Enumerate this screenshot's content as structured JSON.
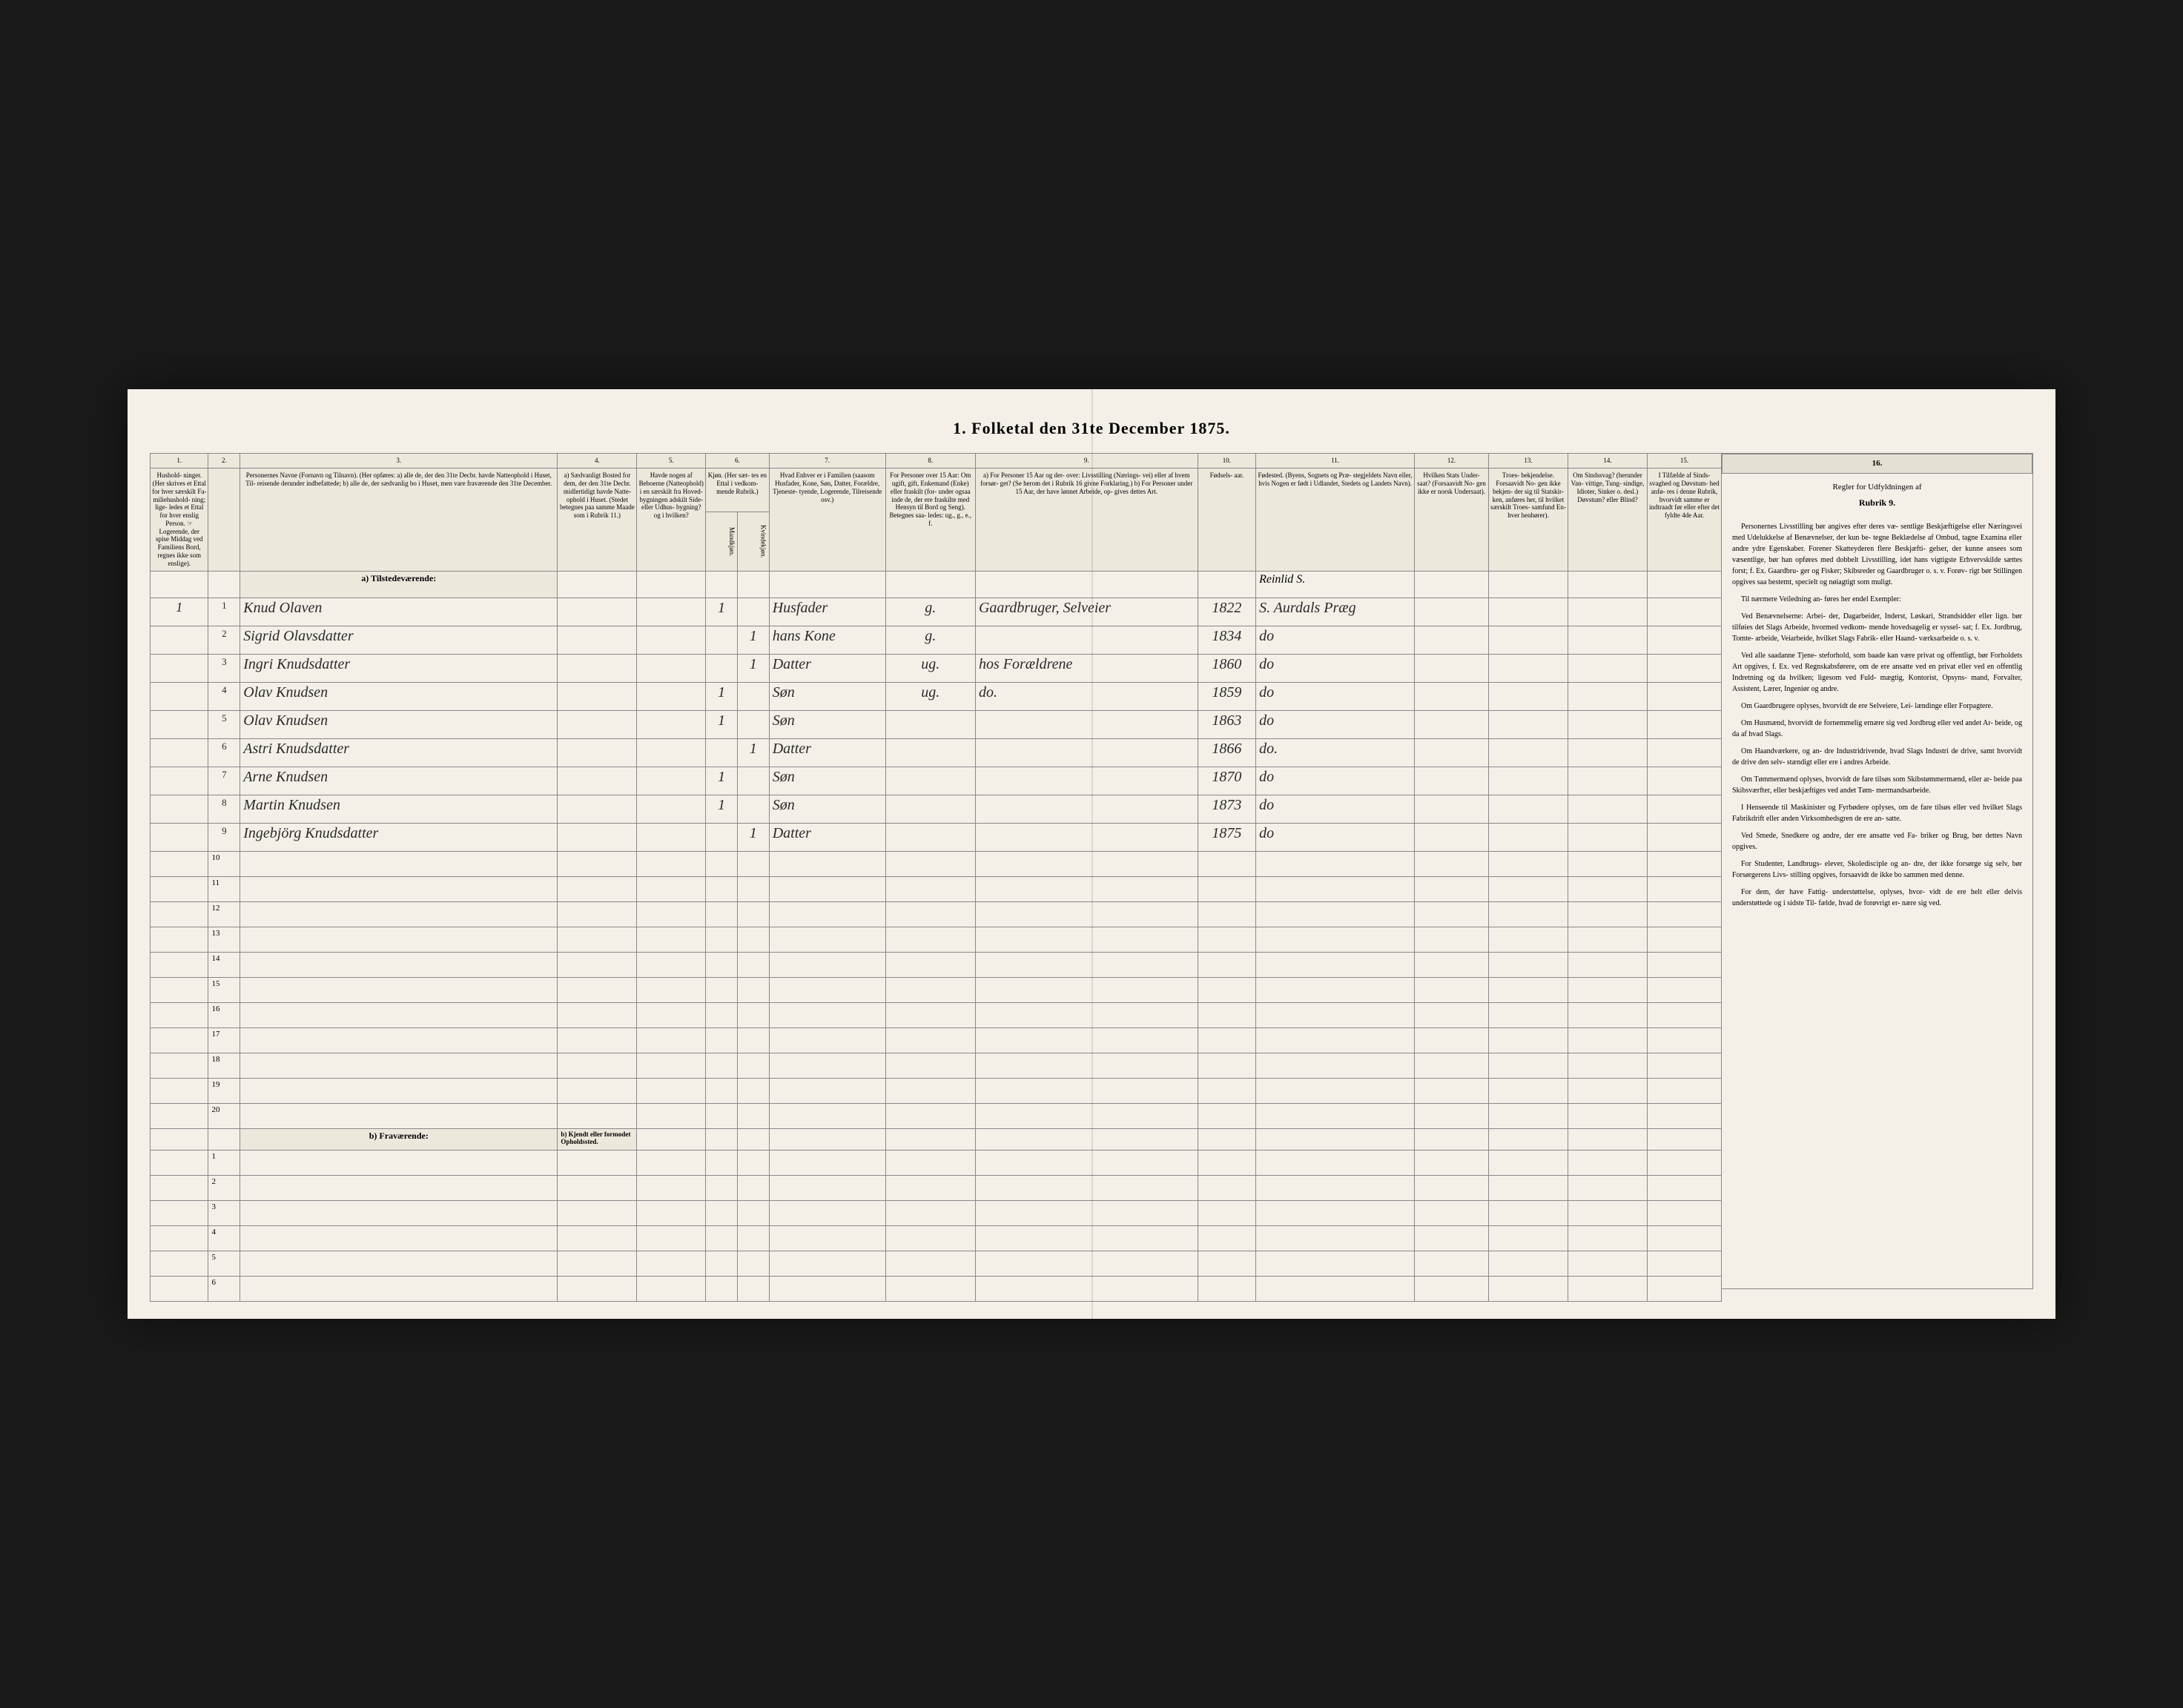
{
  "title": "1. Folketal den 31te December 1875.",
  "colNumbers": [
    "1.",
    "2.",
    "3.",
    "4.",
    "5.",
    "6.",
    "7.",
    "8.",
    "9.",
    "10.",
    "11.",
    "12.",
    "13.",
    "14.",
    "15.",
    "16."
  ],
  "headers": {
    "h1": "Hushold-\nninger.\n(Her skrives et Ettal for hver særskilt Fa-\nmiliehushold-\nning; lige-\nledes et Ettal for hver enslig Person.\n☞ Logerende, der spise Middag ved Familiens Bord, regnes ikke som enslige).",
    "h2": "",
    "h3": "Personernes Navne (Fornavn og Tilnavn).\n(Her opføres:\na) alle de, der den 31te Decbr. havde Natteophold i Huset, Til-\nreisende derunder indbefattede;\nb) alle de, der sædvanlig bo i Huset, men vare fraværende den 31te December.",
    "h4": "a) Sædvanligt Bosted for dem, der den 31te Decbr. midlertidigt havde Natte-\nophold i Huset. (Stedet betegnes paa samme Maade som i Rubrik 11.)",
    "h5": "Havde nogen af Beboerne (Natteophold) i en særskilt fra Hoved-\nbygningen adskilt Side-\neller Udhus-\nbygning? og i hvilken?",
    "h6": "Kjøn.\n(Her sæt-\ntes en Ettal i vedkom-\nmende Rubrik.)",
    "h6a": "Mandkjøn.",
    "h6b": "Kvindekjøn.",
    "h7": "Hvad Enhver er i Familien\n(saasom Husfader, Kone, Søn, Datter, Forældre, Tjeneste-\ntyende, Logerende, Tilreisende osv.)",
    "h8": "For Personer over 15 Aar: Om ugift, gift, Enkemand (Enke) eller fraskilt (for-\nunder ogsaa inde de, der ere fraskilte med Hensyn til Bord og Seng).\nBetegnes saa-\nledes:\nug., g., e., f.",
    "h9": "a) For Personer 15 Aar og der-\nover: Livsstilling (Nærings-\nvei) eller af hvem forsør-\nget? (Se herom det i Rubrik 16 givne Forklaring.)\nb) For Personer under 15 Aar, der have lønnet Arbeide, op-\ngives dettes Art.",
    "h10": "Fødsels-\naar.",
    "h11": "Fødested.\n(Byens, Sognets og Præ-\nstegjeldets Navn eller, hvis Nogen er født i Udlandet, Stedets og Landets Navn).",
    "h12": "Hvilken Stats Under-\nsaat?\n(Forsaavidt No-\ngen ikke er norsk Undersaat).",
    "h13": "Troes-\nbekjendelse.\nForsaavidt No-\ngen ikke bekjen-\nder sig til Statskir-\nken, anføres her, til hvilket særskilt Troes-\nsamfund En-\nhver henhører).",
    "h14": "Om Sindssvag?\n(herunder Van-\nvittige, Tung-\nsindige, Idioter, Sinker o. desl.) Døvstum? eller Blind?",
    "h15": "I Tilfælde af Sinds-\nsvaghed og Døvstum-\nhed anfø-\nres i denne Rubrik, hvorvidt samme er indtraadt før eller efter det fyldte 4de Aar.",
    "h16": "Regler for Udfyldningen\naf\nRubrik 9."
  },
  "sectionA": "a) Tilstedeværende:",
  "sectionB": "b) Fraværende:",
  "sectionBcol4": "b) Kjendt eller formodet Opholdssted.",
  "topRightNote": "Reinlid S.",
  "rows": [
    {
      "hh": "1",
      "n": "1",
      "name": "Knud Olaven",
      "c4": "",
      "c5": "",
      "m": "1",
      "k": "",
      "fam": "Husfader",
      "ms": "g.",
      "occ": "Gaardbruger, Selveier",
      "year": "1822",
      "place": "S. Aurdals Præg",
      "c12": "",
      "c13": "",
      "c14": "",
      "c15": ""
    },
    {
      "hh": "",
      "n": "2",
      "name": "Sigrid Olavsdatter",
      "c4": "",
      "c5": "",
      "m": "",
      "k": "1",
      "fam": "hans Kone",
      "ms": "g.",
      "occ": "",
      "year": "1834",
      "place": "do",
      "c12": "",
      "c13": "",
      "c14": "",
      "c15": ""
    },
    {
      "hh": "",
      "n": "3",
      "name": "Ingri Knudsdatter",
      "c4": "",
      "c5": "",
      "m": "",
      "k": "1",
      "fam": "Datter",
      "ms": "ug.",
      "occ": "hos Forældrene",
      "year": "1860",
      "place": "do",
      "c12": "",
      "c13": "",
      "c14": "",
      "c15": ""
    },
    {
      "hh": "",
      "n": "4",
      "name": "Olav Knudsen",
      "c4": "",
      "c5": "",
      "m": "1",
      "k": "",
      "fam": "Søn",
      "ms": "ug.",
      "occ": "do.",
      "year": "1859",
      "place": "do",
      "c12": "",
      "c13": "",
      "c14": "",
      "c15": ""
    },
    {
      "hh": "",
      "n": "5",
      "name": "Olav Knudsen",
      "c4": "",
      "c5": "",
      "m": "1",
      "k": "",
      "fam": "Søn",
      "ms": "",
      "occ": "",
      "year": "1863",
      "place": "do",
      "c12": "",
      "c13": "",
      "c14": "",
      "c15": ""
    },
    {
      "hh": "",
      "n": "6",
      "name": "Astri Knudsdatter",
      "c4": "",
      "c5": "",
      "m": "",
      "k": "1",
      "fam": "Datter",
      "ms": "",
      "occ": "",
      "year": "1866",
      "place": "do.",
      "c12": "",
      "c13": "",
      "c14": "",
      "c15": ""
    },
    {
      "hh": "",
      "n": "7",
      "name": "Arne Knudsen",
      "c4": "",
      "c5": "",
      "m": "1",
      "k": "",
      "fam": "Søn",
      "ms": "",
      "occ": "",
      "year": "1870",
      "place": "do",
      "c12": "",
      "c13": "",
      "c14": "",
      "c15": ""
    },
    {
      "hh": "",
      "n": "8",
      "name": "Martin Knudsen",
      "c4": "",
      "c5": "",
      "m": "1",
      "k": "",
      "fam": "Søn",
      "ms": "",
      "occ": "",
      "year": "1873",
      "place": "do",
      "c12": "",
      "c13": "",
      "c14": "",
      "c15": ""
    },
    {
      "hh": "",
      "n": "9",
      "name": "Ingebjörg Knudsdatter",
      "c4": "",
      "c5": "",
      "m": "",
      "k": "1",
      "fam": "Datter",
      "ms": "",
      "occ": "",
      "year": "1875",
      "place": "do",
      "c12": "",
      "c13": "",
      "c14": "",
      "c15": ""
    }
  ],
  "emptyRowsA": [
    "10",
    "11",
    "12",
    "13",
    "14",
    "15",
    "16",
    "17",
    "18",
    "19",
    "20"
  ],
  "emptyRowsB": [
    "1",
    "2",
    "3",
    "4",
    "5",
    "6"
  ],
  "sidebar": {
    "title": "Regler for Udfyldningen af",
    "subtitle": "Rubrik 9.",
    "paragraphs": [
      "Personernes Livsstilling bør angives efter deres væ-\nsentlige Beskjæftigelse eller Næringsvei med Udelukkelse af Benævnelser, der kun be-\ntegne Beklædelse af Ombud, tagne Examina eller andre ydre Egenskaber. Forener Skatteyderen flere Beskjæfti-\ngelser, der kunne ansees som væsentlige, bør han opføres med dobbelt Livsstilling, idet hans vigtigste Erhvervskilde sættes forst; f. Ex. Gaardbru-\nger og Fisker; Skibsreder og Gaardbruger o. s. v. Forøv-\nrigt bør Stillingen opgives saa bestemt, specielt og nøiagtigt som muligt.",
      "Til nærmere Veiledning an-\nføres her endel Exempler:",
      "Ved Benævnelserne: Arbei-\nder, Dagarbeider, Inderst, Løskari, Strandsidder eller lign. bør tilføies det Slags Arbeide, hvormed vedkom-\nmende hovedsagelig er syssel-\nsat; f. Ex. Jordbrug, Tomte-\narbeide, Veiarbeide, hvilket Slags Fabrik- eller Haand-\nværksarbeide o. s. v.",
      "Ved alle saadanne Tjene-\nsteforhold, som baade kan være privat og offentligt, bør Forholdets Art opgives, f. Ex. ved Regnskabsførere, om de ere ansatte ved en privat eller ved en offentlig Indretning og da hvilken; ligesom ved Fuld-\nmægtig, Kontorist, Opsyns-\nmand, Forvalter, Assistent, Lærer, Ingeniør og andre.",
      "Om Gaardbrugere oplyses, hvorvidt de ere Selveiere, Lei-\nlændinge eller Forpagtere.",
      "Om Husmænd, hvorvidt de fornemmelig ernære sig ved Jordbrug eller ved andet Ar-\nbeide, og da af hvad Slags.",
      "Om Haandværkere, og an-\ndre Industridrivende, hvad Slags Industri de drive, samt hvorvidt de drive den selv-\nstændigt eller ere i andres Arbeide.",
      "Om Tømmermænd oplyses, hvorvidt de fare tilsøs som Skibstømmermænd, eller ar-\nbeide paa Skibsværfter, eller beskjæftiges ved andet Tøm-\nmermandsarbeide.",
      "I Henseende til Maskinister og Fyrbødere oplyses, om de fare tilsøs eller ved hvilket Slags Fabrikdrift eller anden Virksomhedsgren de ere an-\nsatte.",
      "Ved Smede, Snedkere og andre, der ere ansatte ved Fa-\nbriker og Brug, bør dettes Navn opgives.",
      "For Studenter, Landbrugs-\nelever, Skoledisciple og an-\ndre, der ikke forsørge sig selv, bør Forsørgerens Livs-\nstilling opgives, forsaavidt de ikke bo sammen med denne.",
      "For dem, der have Fattig-\nunderstøttelse, oplyses, hvor-\nvidt de ere helt eller delvis understøttede og i sidste Til-\nfælde, hvad de forøvrigt er-\nnære sig ved."
    ]
  }
}
